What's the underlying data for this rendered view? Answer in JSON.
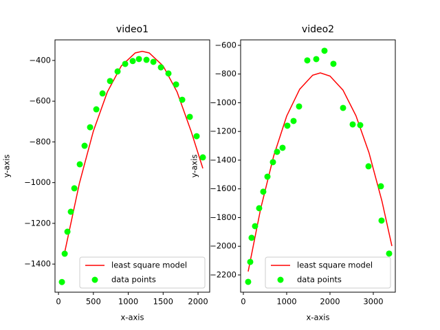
{
  "chart_data": [
    {
      "type": "combo",
      "title": "video1",
      "x_label": "x-axis",
      "y_label": "y-axis",
      "legend": "lower right",
      "xlim": [
        -50,
        2167
      ],
      "ylim": [
        -1538,
        -299
      ],
      "xticks": [
        0,
        500,
        1000,
        1500,
        2000
      ],
      "yticks": [
        {
          "value": -1400,
          "label": "−1400"
        },
        {
          "value": -1200,
          "label": "−1200"
        },
        {
          "value": -1000,
          "label": "−1000"
        },
        {
          "value": -800,
          "label": "−800"
        },
        {
          "value": -600,
          "label": "−600"
        },
        {
          "value": -400,
          "label": "−400"
        }
      ],
      "series": [
        {
          "name": "least square model",
          "type": "line",
          "color": "#ff0000",
          "x": [
            89,
            300,
            500,
            700,
            900,
            1100,
            1200,
            1300,
            1500,
            1700,
            1900,
            2069
          ],
          "values": [
            -1342,
            -1003,
            -747,
            -555,
            -427,
            -363,
            -355,
            -363,
            -427,
            -555,
            -747,
            -930
          ]
        },
        {
          "name": "data points",
          "type": "scatter",
          "color": "#00ff00",
          "x": [
            49,
            89,
            128,
            177,
            227,
            305,
            374,
            453,
            542,
            631,
            739,
            847,
            956,
            1064,
            1153,
            1261,
            1360,
            1468,
            1576,
            1685,
            1773,
            1882,
            1980,
            2069
          ],
          "values": [
            -1488,
            -1349,
            -1241,
            -1143,
            -1028,
            -910,
            -819,
            -728,
            -640,
            -562,
            -501,
            -454,
            -417,
            -403,
            -393,
            -397,
            -407,
            -434,
            -464,
            -518,
            -593,
            -677,
            -772,
            -876
          ]
        }
      ]
    },
    {
      "type": "combo",
      "title": "video2",
      "x_label": "x-axis",
      "y_label": "y-axis",
      "legend": "lower right",
      "xlim": [
        -63,
        3508
      ],
      "ylim": [
        -2320,
        -562
      ],
      "xticks": [
        0,
        1000,
        2000,
        3000
      ],
      "yticks": [
        {
          "value": -2200,
          "label": "−2200"
        },
        {
          "value": -2000,
          "label": "−2000"
        },
        {
          "value": -1800,
          "label": "−1800"
        },
        {
          "value": -1600,
          "label": "−1600"
        },
        {
          "value": -1400,
          "label": "−1400"
        },
        {
          "value": -1200,
          "label": "−1200"
        },
        {
          "value": -1000,
          "label": "−1000"
        },
        {
          "value": -800,
          "label": "−800"
        },
        {
          "value": -600,
          "label": "−600"
        }
      ],
      "series": [
        {
          "name": "least square model",
          "type": "line",
          "color": "#ff0000",
          "x": [
            111,
            400,
            700,
            1000,
            1300,
            1600,
            1778,
            2000,
            2300,
            2600,
            2900,
            3200,
            3429
          ],
          "values": [
            -2176,
            -1738,
            -1371,
            -1093,
            -906,
            -808,
            -792,
            -814,
            -912,
            -1091,
            -1348,
            -1686,
            -1998
          ]
        },
        {
          "name": "data points",
          "type": "scatter",
          "color": "#00ff00",
          "x": [
            111,
            159,
            190,
            270,
            365,
            460,
            556,
            683,
            778,
            905,
            1016,
            1159,
            1286,
            1476,
            1683,
            1873,
            2079,
            2302,
            2524,
            2698,
            2889,
            3175,
            3190,
            3365
          ],
          "values": [
            -2248,
            -2109,
            -1941,
            -1860,
            -1735,
            -1620,
            -1515,
            -1414,
            -1342,
            -1314,
            -1160,
            -1127,
            -1026,
            -705,
            -696,
            -638,
            -729,
            -1036,
            -1151,
            -1156,
            -1443,
            -1582,
            -1821,
            -2051
          ]
        }
      ]
    }
  ]
}
